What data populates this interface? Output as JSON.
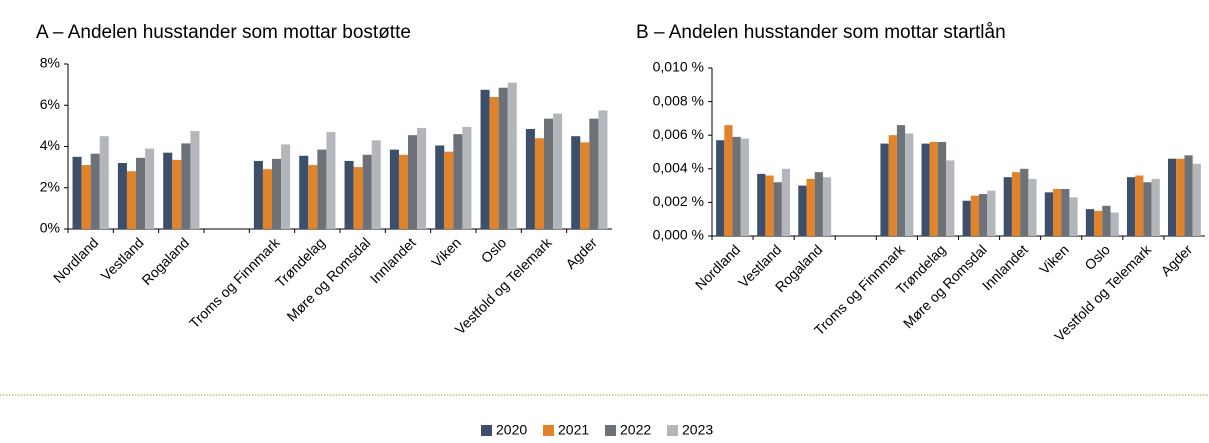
{
  "legend": [
    {
      "name": "2020",
      "color": "#3d4f6b"
    },
    {
      "name": "2021",
      "color": "#e0832a"
    },
    {
      "name": "2022",
      "color": "#6d7278"
    },
    {
      "name": "2023",
      "color": "#b3b7bc"
    }
  ],
  "chart_data": [
    {
      "type": "bar",
      "title": "A – Andelen husstander som mottar bostøtte",
      "categories": [
        "Nordland",
        "Vestland",
        "Rogaland",
        null,
        "Troms og Finnmark",
        "Trøndelag",
        "Møre og Romsdal",
        "Innlandet",
        "Viken",
        "Oslo",
        "Vestfold og Telemark",
        "Agder"
      ],
      "series": [
        {
          "values": [
            3.5,
            3.2,
            3.7,
            null,
            3.3,
            3.55,
            3.3,
            3.85,
            4.05,
            6.75,
            4.85,
            4.5
          ]
        },
        {
          "values": [
            3.1,
            2.8,
            3.35,
            null,
            2.9,
            3.1,
            3.0,
            3.6,
            3.75,
            6.4,
            4.4,
            4.2
          ]
        },
        {
          "values": [
            3.65,
            3.45,
            4.15,
            null,
            3.4,
            3.85,
            3.6,
            4.55,
            4.6,
            6.85,
            5.35,
            5.35
          ]
        },
        {
          "values": [
            4.5,
            3.9,
            4.75,
            null,
            4.1,
            4.7,
            4.3,
            4.9,
            4.95,
            7.1,
            5.6,
            5.75
          ]
        }
      ],
      "ylim": [
        0,
        8
      ],
      "yticks": [
        {
          "value": 0,
          "label": "0%"
        },
        {
          "value": 2,
          "label": "2%"
        },
        {
          "value": 4,
          "label": "4%"
        },
        {
          "value": 6,
          "label": "6%"
        },
        {
          "value": 8,
          "label": "8%"
        }
      ]
    },
    {
      "type": "bar",
      "title": "B – Andelen husstander som mottar startlån",
      "categories": [
        "Nordland",
        "Vestland",
        "Rogaland",
        null,
        "Troms og Finnmark",
        "Trøndelag",
        "Møre og Romsdal",
        "Innlandet",
        "Viken",
        "Oslo",
        "Vestfold og Telemark",
        "Agder"
      ],
      "series": [
        {
          "values": [
            0.0057,
            0.0037,
            0.003,
            null,
            0.0055,
            0.0055,
            0.0021,
            0.0035,
            0.0026,
            0.0016,
            0.0035,
            0.0046
          ]
        },
        {
          "values": [
            0.0066,
            0.0036,
            0.0034,
            null,
            0.006,
            0.0056,
            0.0024,
            0.0038,
            0.0028,
            0.0015,
            0.0036,
            0.0046
          ]
        },
        {
          "values": [
            0.0059,
            0.0032,
            0.0038,
            null,
            0.0066,
            0.0056,
            0.0025,
            0.004,
            0.0028,
            0.0018,
            0.0032,
            0.0048
          ]
        },
        {
          "values": [
            0.0058,
            0.004,
            0.0035,
            null,
            0.0061,
            0.0045,
            0.0027,
            0.0034,
            0.0023,
            0.0014,
            0.0034,
            0.0043
          ]
        }
      ],
      "ylim": [
        0,
        0.01
      ],
      "yticks": [
        {
          "value": 0,
          "label": "0,000 %"
        },
        {
          "value": 0.002,
          "label": "0,002 %"
        },
        {
          "value": 0.004,
          "label": "0,004 %"
        },
        {
          "value": 0.006,
          "label": "0,006 %"
        },
        {
          "value": 0.008,
          "label": "0,008 %"
        },
        {
          "value": 0.01,
          "label": "0,010 %"
        }
      ]
    }
  ]
}
